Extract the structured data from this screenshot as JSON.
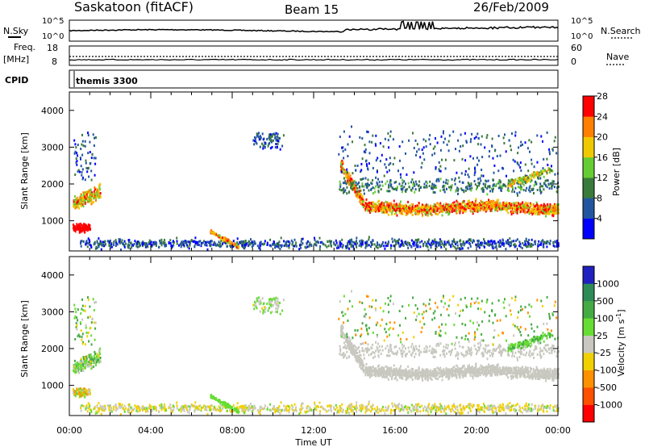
{
  "header": {
    "station": "Saskatoon (fitACF)",
    "beam": "Beam 15",
    "date": "26/Feb/2009"
  },
  "noise_panel": {
    "left_label": "N.Sky",
    "right_label": "N.Search",
    "left_ticks": [
      "10^5",
      "10^0"
    ],
    "right_ticks": [
      "10^5",
      "10^0"
    ]
  },
  "freq_panel": {
    "left_label_line1": "Freq.",
    "left_label_line2": "[MHz]",
    "right_label": "Nave",
    "left_ticks": [
      "18",
      "8"
    ],
    "right_ticks": [
      "60",
      "0"
    ]
  },
  "cpid_panel": {
    "label": "CPID",
    "value": "themis 3300"
  },
  "chart_data": [
    {
      "type": "heatmap",
      "name": "power",
      "ylabel": "Slant Range [km]",
      "ylim": [
        180,
        4500
      ],
      "y_ticks": [
        "1000",
        "2000",
        "3000",
        "4000"
      ],
      "colorbar_label": "Power [dB]",
      "colorbar_ticks": [
        "4",
        "8",
        "12",
        "16",
        "20",
        "24",
        "28"
      ],
      "colorbar_colors": [
        "#0000ff",
        "#2255a0",
        "#3a7a3a",
        "#66cc33",
        "#f0c800",
        "#ff8000",
        "#ff0000"
      ]
    },
    {
      "type": "heatmap",
      "name": "velocity",
      "ylabel": "Slant Range [km]",
      "ylim": [
        180,
        4500
      ],
      "y_ticks": [
        "1000",
        "2000",
        "3000",
        "4000"
      ],
      "colorbar_label": "Velocity [m s",
      "colorbar_label_sup": "-1",
      "colorbar_label_end": "]",
      "colorbar_ticks": [
        "1000",
        "500",
        "100",
        "25",
        "-25",
        "-100",
        "-500",
        "-1000"
      ],
      "colorbar_colors": [
        "#2020c0",
        "#2e8b57",
        "#44aa44",
        "#66dd33",
        "#c8c8c0",
        "#f0d000",
        "#ff9000",
        "#ff5000",
        "#ff0000"
      ]
    }
  ],
  "time_axis": {
    "label": "Time UT",
    "ticks": [
      "00:00",
      "04:00",
      "08:00",
      "12:00",
      "16:00",
      "20:00",
      "00:00"
    ],
    "range_hours": [
      0,
      24
    ]
  }
}
